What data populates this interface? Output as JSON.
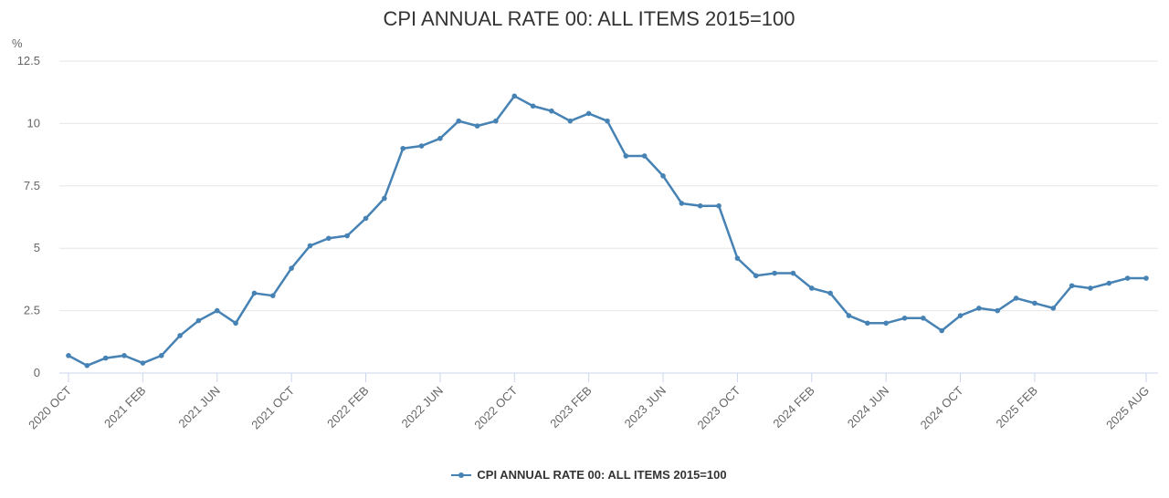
{
  "chart_data": {
    "type": "line",
    "title": "CPI ANNUAL RATE 00: ALL ITEMS 2015=100",
    "ylabel": "%",
    "ylim": [
      0,
      12.5
    ],
    "yticks": [
      "0",
      "2.5",
      "5",
      "7.5",
      "10",
      "12.5"
    ],
    "grid": true,
    "legend_position": "bottom",
    "color": "#4682b4",
    "x_first": "2020 OCT",
    "x_tick_labels": [
      {
        "index": 0,
        "label": "2020 OCT"
      },
      {
        "index": 4,
        "label": "2021 FEB"
      },
      {
        "index": 8,
        "label": "2021 JUN"
      },
      {
        "index": 12,
        "label": "2021 OCT"
      },
      {
        "index": 16,
        "label": "2022 FEB"
      },
      {
        "index": 20,
        "label": "2022 JUN"
      },
      {
        "index": 24,
        "label": "2022 OCT"
      },
      {
        "index": 28,
        "label": "2023 FEB"
      },
      {
        "index": 32,
        "label": "2023 JUN"
      },
      {
        "index": 36,
        "label": "2023 OCT"
      },
      {
        "index": 40,
        "label": "2024 FEB"
      },
      {
        "index": 44,
        "label": "2024 JUN"
      },
      {
        "index": 48,
        "label": "2024 OCT"
      },
      {
        "index": 52,
        "label": "2025 FEB"
      },
      {
        "index": 58,
        "label": "2025 AUG"
      }
    ],
    "series": [
      {
        "name": "CPI ANNUAL RATE 00: ALL ITEMS 2015=100",
        "values": [
          0.7,
          0.3,
          0.6,
          0.7,
          0.4,
          0.7,
          1.5,
          2.1,
          2.5,
          2.0,
          3.2,
          3.1,
          4.2,
          5.1,
          5.4,
          5.5,
          6.2,
          7.0,
          9.0,
          9.1,
          9.4,
          10.1,
          9.9,
          10.1,
          11.1,
          10.7,
          10.5,
          10.1,
          10.4,
          10.1,
          8.7,
          8.7,
          7.9,
          6.8,
          6.7,
          6.7,
          4.6,
          3.9,
          4.0,
          4.0,
          3.4,
          3.2,
          2.3,
          2.0,
          2.0,
          2.2,
          2.2,
          1.7,
          2.3,
          2.6,
          2.5,
          3.0,
          2.8,
          2.6,
          3.5,
          3.4,
          3.6,
          3.8,
          3.8
        ]
      }
    ]
  }
}
